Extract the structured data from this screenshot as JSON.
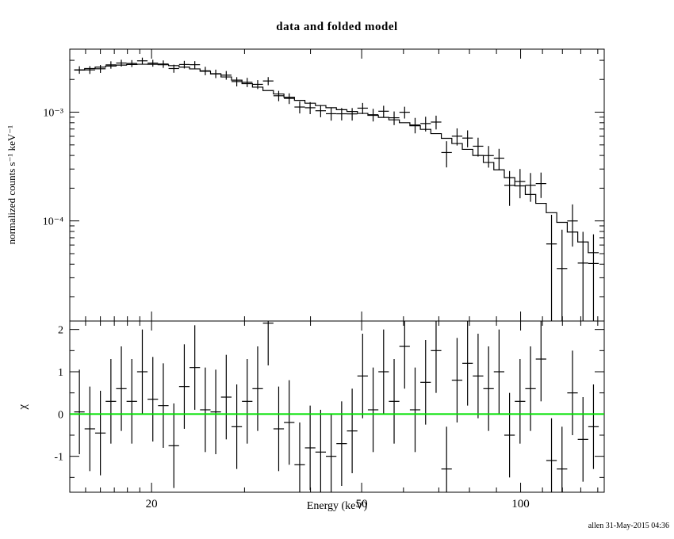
{
  "footer": {
    "credit": "allen 31-May-2015 04:36"
  },
  "chart_data": {
    "type": "scatter",
    "subtype": "spectrum-with-residuals",
    "title": "data and folded model",
    "xlabel": "Energy (keV)",
    "x_scale": "log",
    "x_range": [
      14.0,
      144.0
    ],
    "x_ticks": [
      {
        "v": 20,
        "label": "20"
      },
      {
        "v": 50,
        "label": "50"
      },
      {
        "v": 100,
        "label": "100"
      }
    ],
    "x_minor_ticks": [
      15,
      16,
      17,
      18,
      19,
      30,
      40,
      60,
      70,
      80,
      90,
      110,
      120,
      130,
      140
    ],
    "top_panel": {
      "ylabel": "normalized counts s⁻¹ keV⁻¹",
      "y_scale": "log",
      "y_range": [
        1.2e-05,
        0.0038
      ],
      "y_ticks": [
        {
          "v": 0.001,
          "label": "10⁻³"
        },
        {
          "v": 0.0001,
          "label": "10⁻⁴"
        }
      ],
      "y_minor_ticks": [
        2e-05,
        3e-05,
        4e-05,
        5e-05,
        6e-05,
        7e-05,
        8e-05,
        9e-05,
        0.0002,
        0.0003,
        0.0004,
        0.0005,
        0.0006,
        0.0007,
        0.0008,
        0.0009,
        0.002,
        0.003
      ]
    },
    "chi_panel": {
      "ylabel": "χ",
      "y_scale": "linear",
      "y_range": [
        -1.85,
        2.2
      ],
      "y_ticks": [
        {
          "v": 2,
          "label": "2"
        },
        {
          "v": 1,
          "label": "1"
        },
        {
          "v": 0,
          "label": "0"
        },
        {
          "v": -1,
          "label": "-1"
        }
      ],
      "y_minor_ticks": [
        -1.5,
        -0.5,
        0.5,
        1.5
      ],
      "chi_error": 1
    },
    "colors": {
      "zero_line": "#00e000",
      "data": "#000000",
      "model": "#000000"
    },
    "series": {
      "energy": [
        14.6,
        15.28,
        16.0,
        16.75,
        17.53,
        18.35,
        19.21,
        20.11,
        21.05,
        22.04,
        23.07,
        24.15,
        25.28,
        26.46,
        27.7,
        29.0,
        30.35,
        31.77,
        33.26,
        34.82,
        36.45,
        38.16,
        39.94,
        41.81,
        43.77,
        45.82,
        47.97,
        50.21,
        52.56,
        55.02,
        57.6,
        60.3,
        63.12,
        66.08,
        69.17,
        72.41,
        75.8,
        79.35,
        83.07,
        86.96,
        91.03,
        95.29,
        99.75,
        104.42,
        109.31,
        114.43,
        119.79,
        125.4,
        131.27,
        137.41
      ],
      "model": [
        0.00244,
        0.00252,
        0.0026,
        0.00266,
        0.00271,
        0.002745,
        0.00276,
        0.002755,
        0.00273,
        0.00268,
        0.0026,
        0.0025,
        0.00238,
        0.00225,
        0.00211,
        0.00197,
        0.00183,
        0.0017,
        0.00158,
        0.00147,
        0.00137,
        0.001285,
        0.00121,
        0.00115,
        0.0011,
        0.001055,
        0.001015,
        0.000975,
        0.000935,
        0.000895,
        0.00085,
        0.0008,
        0.00075,
        0.000695,
        0.000635,
        0.000575,
        0.000515,
        0.000455,
        0.0004,
        0.000345,
        0.000295,
        0.00025,
        0.00021,
        0.000175,
        0.000145,
        0.000119,
        9.7e-05,
        7.9e-05,
        6.4e-05,
        5.1e-05
      ],
      "chi": [
        0.05,
        -0.35,
        -0.45,
        0.3,
        0.6,
        0.3,
        1.0,
        0.35,
        0.2,
        -0.75,
        0.65,
        1.1,
        0.1,
        0.05,
        0.4,
        -0.3,
        0.3,
        0.6,
        2.15,
        -0.35,
        -0.2,
        -1.2,
        -0.8,
        -0.9,
        -1.0,
        -0.7,
        -0.4,
        0.9,
        0.1,
        1.0,
        0.3,
        1.6,
        0.1,
        0.75,
        1.5,
        -1.3,
        0.8,
        1.2,
        0.9,
        0.6,
        1.0,
        -0.5,
        0.3,
        0.6,
        1.3,
        -1.1,
        -1.3,
        0.5,
        -0.6,
        -0.3
      ],
      "rel_err": [
        0.08,
        0.08,
        0.08,
        0.08,
        0.075,
        0.075,
        0.075,
        0.075,
        0.08,
        0.08,
        0.085,
        0.085,
        0.09,
        0.09,
        0.095,
        0.095,
        0.1,
        0.1,
        0.105,
        0.105,
        0.11,
        0.11,
        0.115,
        0.115,
        0.12,
        0.12,
        0.125,
        0.13,
        0.135,
        0.14,
        0.15,
        0.155,
        0.165,
        0.175,
        0.185,
        0.2,
        0.21,
        0.225,
        0.24,
        0.26,
        0.28,
        0.3,
        0.33,
        0.36,
        0.4,
        0.44,
        0.48,
        0.53,
        0.6,
        0.68
      ]
    }
  }
}
